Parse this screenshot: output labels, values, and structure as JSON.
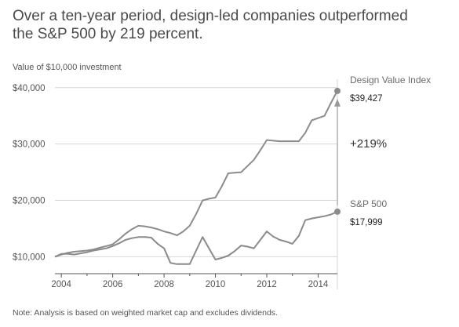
{
  "title_lines": [
    "Over a ten-year period, design-led companies outperformed",
    "the S&P 500 by 219 percent."
  ],
  "subtitle": "Value of $10,000 investment",
  "note": "Note: Analysis is based on weighted market cap and excludes dividends.",
  "colors": {
    "dvi_line": "#8c8c8c",
    "sp_line": "#8a8a8a",
    "grid": "#d6d6d6",
    "axis": "#555555",
    "marker": "#8c8c8c"
  },
  "chart_data": {
    "type": "line",
    "title": "Over a ten-year period, design-led companies outperformed the S&P 500 by 219 percent.",
    "ylabel": "Value of $10,000 investment",
    "xlabel": "",
    "xlim": [
      2003.75,
      2014.75
    ],
    "ylim": [
      7000,
      41500
    ],
    "grid": true,
    "x_ticks": [
      2004,
      2006,
      2008,
      2010,
      2012,
      2014
    ],
    "x_tick_labels": [
      "2004",
      "2006",
      "2008",
      "2010",
      "2012",
      "2014"
    ],
    "y_ticks": [
      10000,
      20000,
      30000,
      40000
    ],
    "y_tick_labels": [
      "$10,000",
      "$20,000",
      "$30,000",
      "$40,000"
    ],
    "series": [
      {
        "name": "Design Value Index",
        "end_label": "$39,427",
        "x": [
          2003.75,
          2004.0,
          2004.25,
          2004.5,
          2004.75,
          2005.0,
          2005.25,
          2005.5,
          2005.75,
          2006.0,
          2006.25,
          2006.5,
          2006.75,
          2007.0,
          2007.25,
          2007.5,
          2007.75,
          2008.0,
          2008.25,
          2008.5,
          2008.75,
          2009.0,
          2009.25,
          2009.5,
          2009.75,
          2010.0,
          2010.25,
          2010.5,
          2010.75,
          2011.0,
          2011.25,
          2011.5,
          2011.75,
          2012.0,
          2012.25,
          2012.5,
          2012.75,
          2013.0,
          2013.25,
          2013.5,
          2013.75,
          2014.0,
          2014.25,
          2014.5,
          2014.75
        ],
        "values": [
          10000,
          10400,
          10700,
          10900,
          11000,
          11100,
          11300,
          11600,
          11900,
          12200,
          13100,
          14100,
          14900,
          15500,
          15400,
          15200,
          14900,
          14500,
          14200,
          13800,
          14500,
          15500,
          17600,
          20000,
          20300,
          20500,
          22500,
          24800,
          24900,
          25000,
          26100,
          27200,
          28900,
          30700,
          30600,
          30500,
          30500,
          30500,
          30500,
          32000,
          34200,
          34600,
          35000,
          37300,
          39427
        ]
      },
      {
        "name": "S&P 500",
        "end_label": "$17,999",
        "x": [
          2003.75,
          2004.0,
          2004.25,
          2004.5,
          2004.75,
          2005.0,
          2005.25,
          2005.5,
          2005.75,
          2006.0,
          2006.25,
          2006.5,
          2006.75,
          2007.0,
          2007.25,
          2007.5,
          2007.75,
          2008.0,
          2008.25,
          2008.5,
          2008.75,
          2009.0,
          2009.25,
          2009.5,
          2009.75,
          2010.0,
          2010.25,
          2010.5,
          2010.75,
          2011.0,
          2011.25,
          2011.5,
          2011.75,
          2012.0,
          2012.25,
          2012.5,
          2012.75,
          2013.0,
          2013.25,
          2013.5,
          2013.75,
          2014.0,
          2014.25,
          2014.5,
          2014.75
        ],
        "values": [
          10000,
          10500,
          10500,
          10400,
          10600,
          10800,
          11100,
          11300,
          11500,
          11900,
          12400,
          13000,
          13300,
          13500,
          13500,
          13400,
          12300,
          11500,
          8900,
          8700,
          8700,
          8700,
          11100,
          13500,
          11500,
          9500,
          9800,
          10200,
          11000,
          12000,
          11800,
          11500,
          13000,
          14500,
          13600,
          13000,
          12700,
          12300,
          13700,
          16500,
          16800,
          17000,
          17200,
          17500,
          17999
        ]
      }
    ],
    "annotation": {
      "label": "+219%"
    }
  }
}
